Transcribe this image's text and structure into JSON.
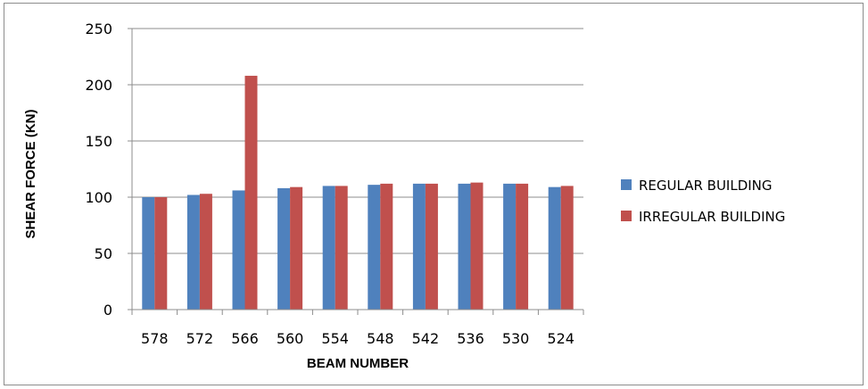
{
  "chart_data": {
    "type": "bar",
    "categories": [
      "578",
      "572",
      "566",
      "560",
      "554",
      "548",
      "542",
      "536",
      "530",
      "524"
    ],
    "series": [
      {
        "name": "REGULAR BUILDING",
        "color": "#4F81BD",
        "values": [
          100,
          102,
          106,
          108,
          110,
          111,
          112,
          112,
          112,
          109
        ]
      },
      {
        "name": "IRREGULAR BUILDING",
        "color": "#C0504D",
        "values": [
          100,
          103,
          208,
          109,
          110,
          112,
          112,
          113,
          112,
          110
        ]
      }
    ],
    "xlabel": "BEAM NUMBER",
    "ylabel": "SHEAR FORCE (KN)",
    "ylim": [
      0,
      250
    ],
    "yticks": [
      0,
      50,
      100,
      150,
      200,
      250
    ],
    "grid": true,
    "legend": "right"
  }
}
